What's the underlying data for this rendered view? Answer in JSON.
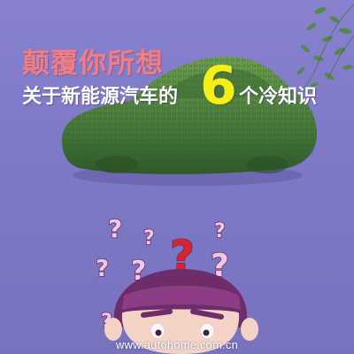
{
  "headline": {
    "line1": "颠覆你所想",
    "line2_prefix": "关于新能源汽车的",
    "number": "6",
    "line2_suffix": "个冷知识"
  },
  "footer": {
    "url": "www.autohome.com.cn"
  },
  "colors": {
    "background": "#7f7bc7",
    "headline_pink": "#f07d84",
    "number_yellow": "#f4ef18",
    "grass_green": "#4a7d3c",
    "question_red": "#d8242c",
    "question_pink": "#f0c8e4"
  },
  "icons": [
    "grass-car-illustration",
    "leaves-illustration",
    "question-mark-icon",
    "confused-person-illustration"
  ]
}
